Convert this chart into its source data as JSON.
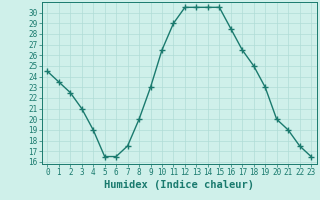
{
  "xlabel": "Humidex (Indice chaleur)",
  "x": [
    0,
    1,
    2,
    3,
    4,
    5,
    6,
    7,
    8,
    9,
    10,
    11,
    12,
    13,
    14,
    15,
    16,
    17,
    18,
    19,
    20,
    21,
    22,
    23
  ],
  "y": [
    24.5,
    23.5,
    22.5,
    21.0,
    19.0,
    16.5,
    16.5,
    17.5,
    20.0,
    23.0,
    26.5,
    29.0,
    30.5,
    30.5,
    30.5,
    30.5,
    28.5,
    26.5,
    25.0,
    23.0,
    20.0,
    19.0,
    17.5,
    16.5
  ],
  "ylim_min": 15.8,
  "ylim_max": 31.0,
  "xlim_min": -0.5,
  "xlim_max": 23.5,
  "yticks": [
    16,
    17,
    18,
    19,
    20,
    21,
    22,
    23,
    24,
    25,
    26,
    27,
    28,
    29,
    30
  ],
  "xticks": [
    0,
    1,
    2,
    3,
    4,
    5,
    6,
    7,
    8,
    9,
    10,
    11,
    12,
    13,
    14,
    15,
    16,
    17,
    18,
    19,
    20,
    21,
    22,
    23
  ],
  "line_color": "#1a7a6e",
  "marker": "+",
  "marker_size": 4,
  "marker_edge_width": 1.0,
  "line_width": 1.0,
  "bg_color": "#cff0ea",
  "grid_color": "#b0ddd6",
  "tick_label_fontsize": 5.5,
  "xlabel_fontsize": 7.5
}
